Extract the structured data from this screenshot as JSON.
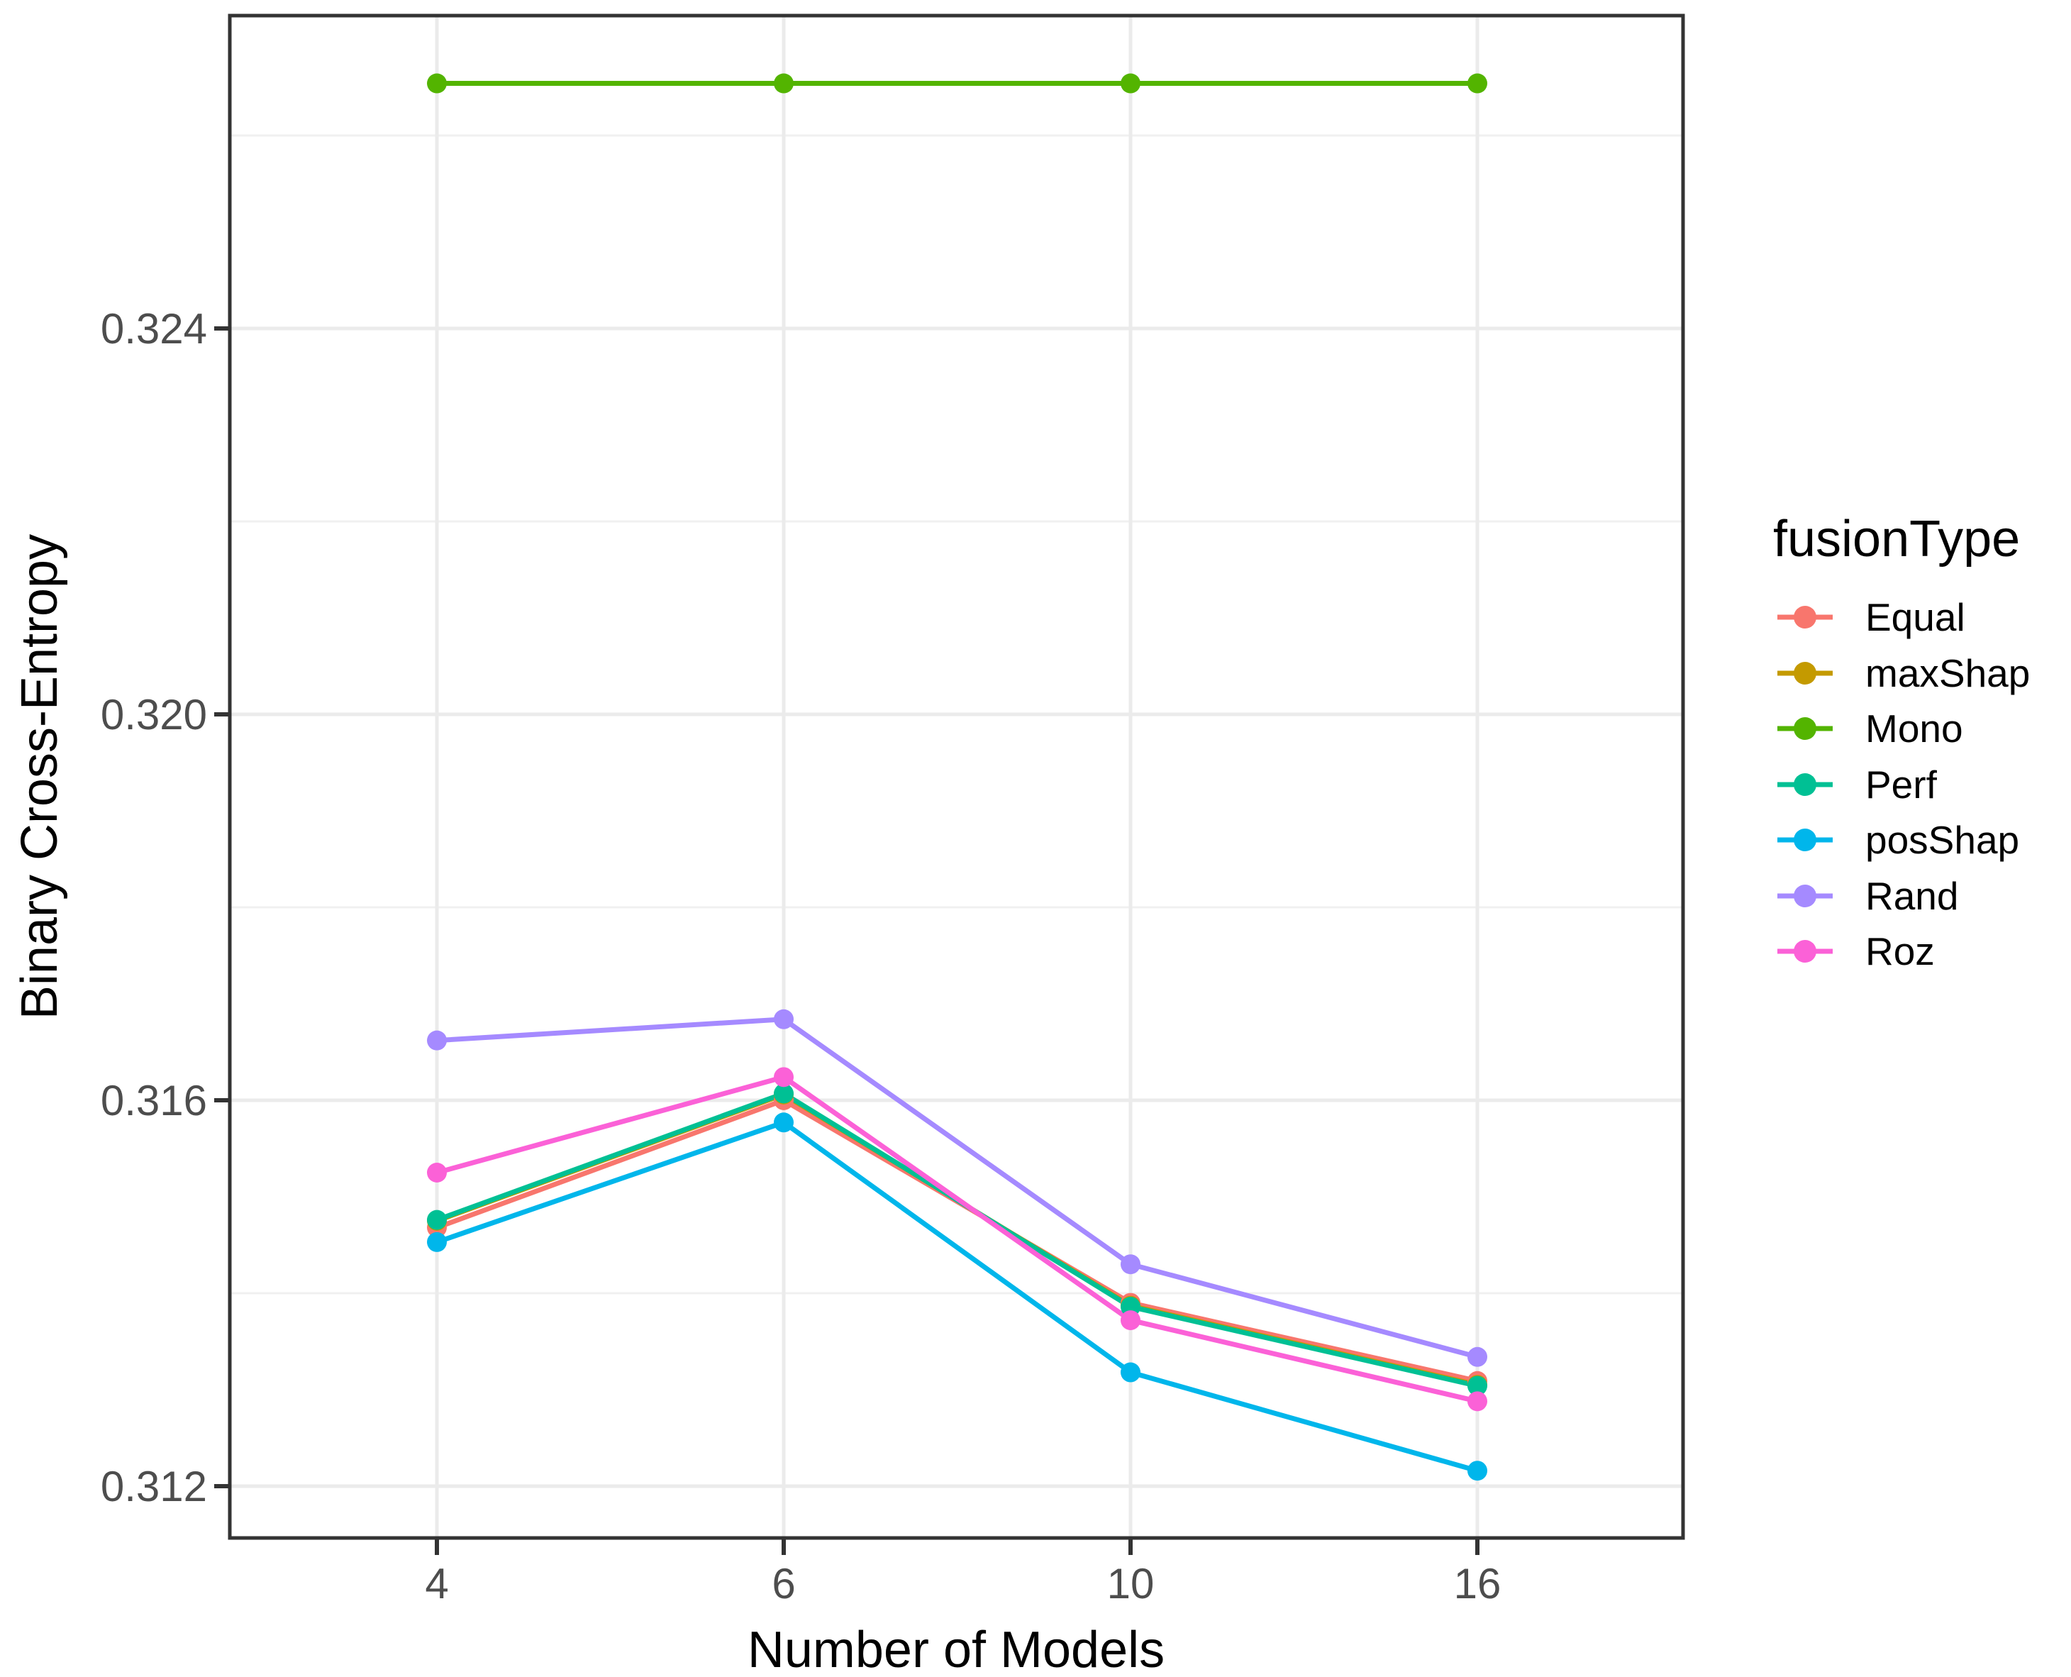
{
  "chart_data": {
    "type": "line",
    "title": "",
    "xlabel": "Number of Models",
    "ylabel": "Binary Cross-Entropy",
    "categories": [
      "4",
      "6",
      "10",
      "16"
    ],
    "x_equally_spaced": true,
    "y_ticks": [
      "0.312",
      "0.316",
      "0.320",
      "0.324"
    ],
    "y_tick_values": [
      0.312,
      0.316,
      0.32,
      0.324
    ],
    "y_minor_tick_values": [
      0.314,
      0.318,
      0.322,
      0.326
    ],
    "ylim": [
      0.311,
      0.3272
    ],
    "grid": true,
    "panel_border_color": "#333333",
    "grid_major_color": "#ebebeb",
    "grid_minor_color": "#f0f0f0",
    "tick_label_color": "#4d4d4d",
    "legend": {
      "title": "fusionType",
      "position": "right"
    },
    "series": [
      {
        "name": "Equal",
        "color": "#F8766D",
        "values": [
          0.31468,
          0.316,
          0.3139,
          0.31309
        ]
      },
      {
        "name": "maxShap",
        "color": "#C49A00",
        "values": [
          0.31475,
          0.31606,
          0.31387,
          0.31305
        ]
      },
      {
        "name": "Mono",
        "color": "#53B400",
        "values": [
          0.32654,
          0.32654,
          0.32654,
          0.32654
        ]
      },
      {
        "name": "Perf",
        "color": "#00C094",
        "values": [
          0.31476,
          0.31607,
          0.31386,
          0.31304
        ]
      },
      {
        "name": "posShap",
        "color": "#00B6EB",
        "values": [
          0.31453,
          0.31577,
          0.31318,
          0.31216
        ]
      },
      {
        "name": "Rand",
        "color": "#A58AFF",
        "values": [
          0.31662,
          0.31684,
          0.3143,
          0.31334
        ]
      },
      {
        "name": "Roz",
        "color": "#FB61D7",
        "values": [
          0.31525,
          0.31624,
          0.31372,
          0.31288
        ]
      }
    ]
  }
}
